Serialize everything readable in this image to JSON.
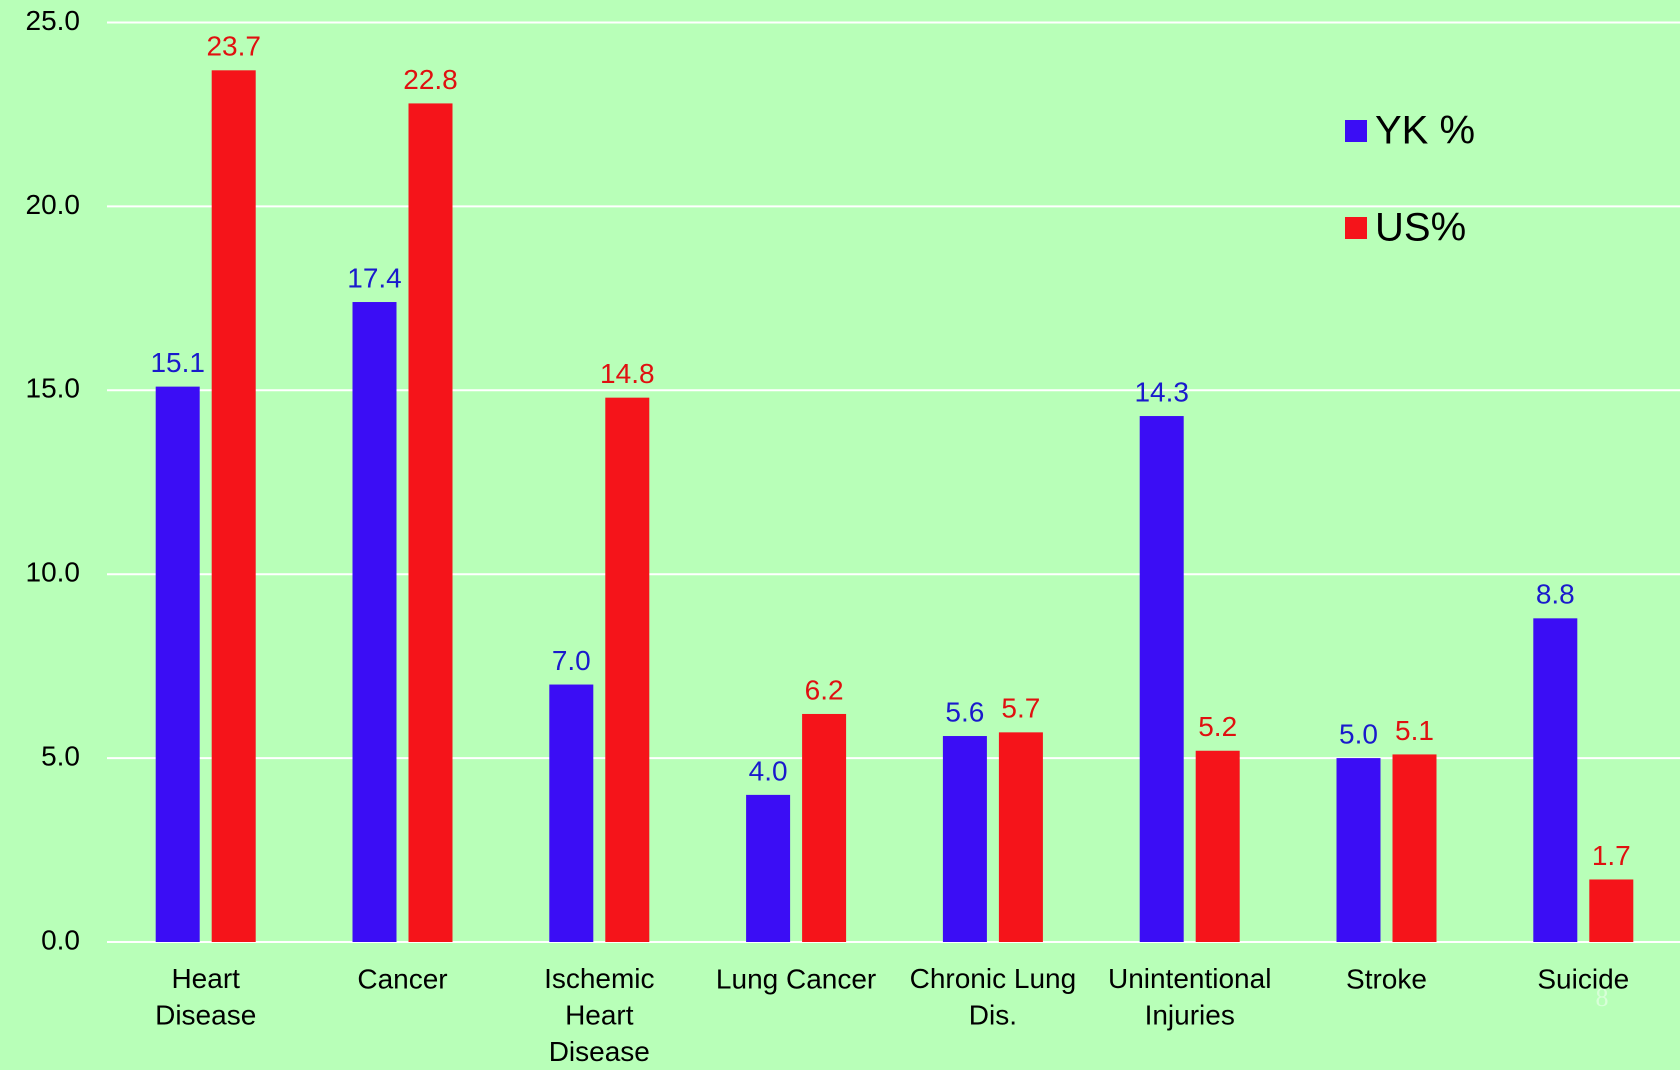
{
  "chart_data": {
    "type": "bar",
    "categories": [
      "Heart\nDisease",
      "Cancer",
      "Ischemic\nHeart\nDisease",
      "Lung Cancer",
      "Chronic Lung\nDis.",
      "Unintentional\nInjuries",
      "Stroke",
      "Suicide"
    ],
    "series": [
      {
        "name": "YK %",
        "color": "#3b0df5",
        "label_color": "#1a1acc",
        "values": [
          15.1,
          17.4,
          7.0,
          4.0,
          5.6,
          14.3,
          5.0,
          8.8
        ],
        "value_labels": [
          "15.1",
          "17.4",
          "7.0",
          "4.0",
          "5.6",
          "14.3",
          "5.0",
          "8.8"
        ]
      },
      {
        "name": "US%",
        "color": "#f5141a",
        "label_color": "#e01010",
        "values": [
          23.7,
          22.8,
          14.8,
          6.2,
          5.7,
          5.2,
          5.1,
          1.7
        ],
        "value_labels": [
          "23.7",
          "22.8",
          "14.8",
          "6.2",
          "5.7",
          "5.2",
          "5.1",
          "1.7"
        ]
      }
    ],
    "ylim": [
      0,
      25
    ],
    "yticks": [
      {
        "value": 0,
        "label": "0.0"
      },
      {
        "value": 5,
        "label": "5.0"
      },
      {
        "value": 10,
        "label": "10.0"
      },
      {
        "value": 15,
        "label": "15.0"
      },
      {
        "value": 20,
        "label": "20.0"
      },
      {
        "value": 25,
        "label": "25.0"
      }
    ],
    "grid": true,
    "legend": "top-right",
    "slide_number": "8"
  }
}
